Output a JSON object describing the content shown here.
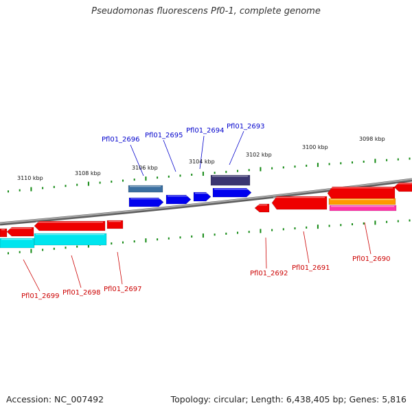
{
  "title": "Pseudomonas fluorescens Pf0-1, complete genome",
  "footer": {
    "accession": "Accession: NC_007492",
    "summary": "Topology: circular; Length: 6,438,405 bp; Genes: 5,816"
  },
  "colors": {
    "backbone": "#808080",
    "tick": "#118811",
    "forward_label": "#0000cc",
    "reverse_label": "#cc0000",
    "red_gene": "#ee0000",
    "blue_gene": "#0000ee",
    "cyan_gene": "#00e5ee",
    "orange_gene": "#ff9900",
    "magenta_gene": "#ff33aa",
    "slate_gene": "#3b6fa0",
    "purple_gene": "#3a3570"
  },
  "ticks": {
    "top_labels": [
      "3110 kbp",
      "3108 kbp",
      "3106 kbp",
      "3104 kbp",
      "3102 kbp",
      "3100 kbp",
      "3098 kbp"
    ]
  },
  "genes": {
    "forward": [
      "Pfl01_2696",
      "Pfl01_2695",
      "Pfl01_2694",
      "Pfl01_2693"
    ],
    "reverse": [
      "Pfl01_2699",
      "Pfl01_2698",
      "Pfl01_2697",
      "Pfl01_2692",
      "Pfl01_2691",
      "Pfl01_2690"
    ]
  }
}
